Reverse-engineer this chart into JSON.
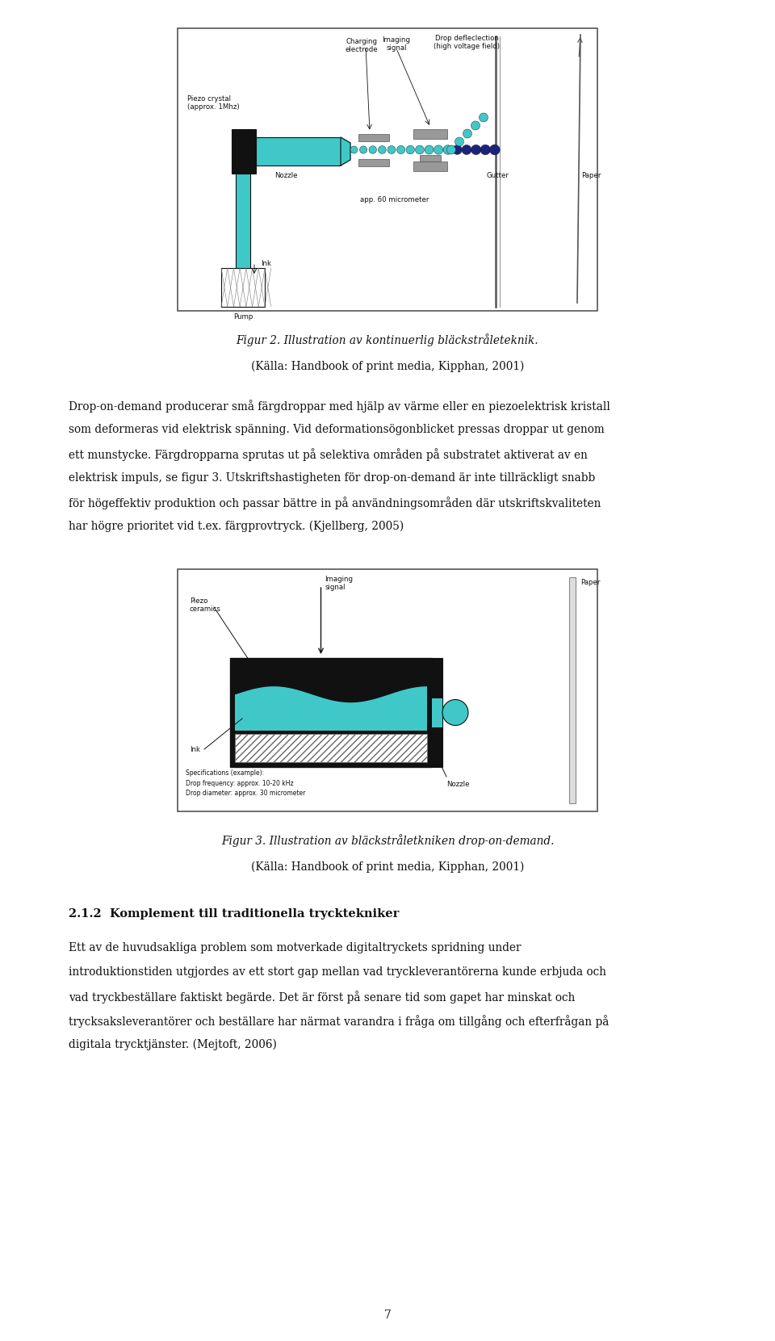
{
  "fig_width": 9.6,
  "fig_height": 16.61,
  "bg_color": "#ffffff",
  "body_fontsize": 9.8,
  "caption_fontsize": 9.8,
  "section_fontsize": 10.5,
  "page_number": "7",
  "fig2_caption": "Figur 2. Illustration av kontinuerlig bläckstråleteknik.",
  "fig2_source": "(Källa: Handbook of print media, Kipphan, 2001)",
  "body_text1_lines": [
    "Drop-on-demand producerar små färgdroppar med hjälp av värme eller en piezoelektrisk kristall",
    "som deformeras vid elektrisk spänning. Vid deformationsögonblicket pressas droppar ut genom",
    "ett munstycke. Färgdropparna sprutas ut på selektiva områden på substratet aktiverat av en",
    "elektrisk impuls, se figur 3. Utskriftshastigheten för drop-on-demand är inte tillräckligt snabb",
    "för högeffektiv produktion och passar bättre in på användningsområden där utskriftskvaliteten",
    "har högre prioritet vid t.ex. färgprovtryck. (Kjellberg, 2005)"
  ],
  "fig3_caption": "Figur 3. Illustration av bläckstråletkniken drop-on-demand.",
  "fig3_source": "(Källa: Handbook of print media, Kipphan, 2001)",
  "section_title": "2.1.2  Komplement till traditionella trycktekniker",
  "body_text2_lines": [
    "Ett av de huvudsakliga problem som motverkade digitaltryckets spridning under",
    "introduktionstiden utgjordes av ett stort gap mellan vad tryckleverantörerna kunde erbjuda och",
    "vad tryckbeställare faktiskt begärde. Det är först på senare tid som gapet har minskat och",
    "trycksaksleverantörer och beställare har närmat varandra i fråga om tillgång och efterfrågan på",
    "digitala trycktjänster. (Mejtoft, 2006)"
  ],
  "teal": "#40C8C8",
  "dark_teal": "#20A8A8",
  "black": "#111111",
  "dark_gray": "#444444",
  "mid_gray": "#888888",
  "light_gray": "#cccccc"
}
